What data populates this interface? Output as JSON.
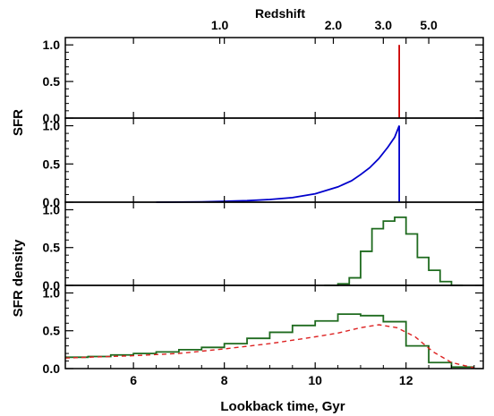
{
  "chart_data": {
    "type": "line",
    "x_axis": {
      "label": "Lookback time, Gyr",
      "range": [
        4.5,
        13.7
      ],
      "ticks": [
        6,
        8,
        10,
        12
      ],
      "tick_labels": [
        "6",
        "8",
        "10",
        "12"
      ]
    },
    "top_axis": {
      "label": "Redshift",
      "tick_labels": [
        "1.0",
        "2.0",
        "3.0",
        "5.0"
      ],
      "tick_lookback_gyr": [
        7.9,
        10.4,
        11.5,
        12.5
      ]
    },
    "y_axis_labels": [
      "SFR",
      "SFR density"
    ],
    "panels": [
      {
        "id": "burst",
        "ylim": [
          0,
          1.1
        ],
        "tick_labels": [
          "0.0",
          "0.5",
          "1.0"
        ],
        "series": [
          {
            "style": "line",
            "color": "#cc0000",
            "x": [
              11.85,
              11.85
            ],
            "y": [
              0.0,
              1.0
            ]
          }
        ]
      },
      {
        "id": "exponential",
        "ylim": [
          0,
          1.1
        ],
        "tick_labels": [
          "0.0",
          "0.5",
          "1.0"
        ],
        "series": [
          {
            "style": "line",
            "color": "#0000cc",
            "x": [
              6.5,
              7.5,
              8.5,
              9.0,
              9.5,
              10.0,
              10.5,
              10.8,
              11.0,
              11.2,
              11.4,
              11.6,
              11.75,
              11.85,
              11.85
            ],
            "y": [
              0.0,
              0.005,
              0.02,
              0.035,
              0.06,
              0.11,
              0.2,
              0.28,
              0.36,
              0.45,
              0.57,
              0.72,
              0.85,
              1.0,
              0.0
            ]
          }
        ]
      },
      {
        "id": "histogram-narrow",
        "ylim": [
          0,
          1.1
        ],
        "tick_labels": [
          "0.0",
          "0.5",
          "1.0"
        ],
        "series": [
          {
            "style": "step",
            "color": "#1f6b1f",
            "edges": [
              10.2,
              10.5,
              10.75,
              11.0,
              11.25,
              11.5,
              11.75,
              12.0,
              12.25,
              12.5,
              12.75,
              13.0,
              13.25
            ],
            "values": [
              0.0,
              0.02,
              0.1,
              0.45,
              0.75,
              0.85,
              0.9,
              0.68,
              0.37,
              0.2,
              0.05,
              0.0
            ]
          }
        ]
      },
      {
        "id": "histogram-broad",
        "ylim": [
          0,
          1.1
        ],
        "tick_labels": [
          "0.0",
          "0.5",
          "1.0"
        ],
        "series": [
          {
            "style": "step",
            "color": "#1f6b1f",
            "edges": [
              4.5,
              5.0,
              5.5,
              6.0,
              6.5,
              7.0,
              7.5,
              8.0,
              8.5,
              9.0,
              9.5,
              10.0,
              10.5,
              11.0,
              11.5,
              12.0,
              12.5,
              13.0,
              13.5
            ],
            "values": [
              0.15,
              0.16,
              0.18,
              0.2,
              0.22,
              0.25,
              0.28,
              0.33,
              0.4,
              0.48,
              0.57,
              0.63,
              0.72,
              0.7,
              0.62,
              0.3,
              0.08,
              0.02
            ]
          },
          {
            "style": "dashed",
            "color": "#dd2222",
            "x": [
              4.5,
              5.0,
              6.0,
              7.0,
              8.0,
              9.0,
              10.0,
              10.5,
              11.0,
              11.4,
              11.8,
              12.2,
              12.6,
              13.0,
              13.5
            ],
            "y": [
              0.14,
              0.15,
              0.17,
              0.2,
              0.26,
              0.33,
              0.42,
              0.47,
              0.54,
              0.58,
              0.54,
              0.42,
              0.22,
              0.08,
              0.01
            ]
          }
        ]
      }
    ]
  }
}
